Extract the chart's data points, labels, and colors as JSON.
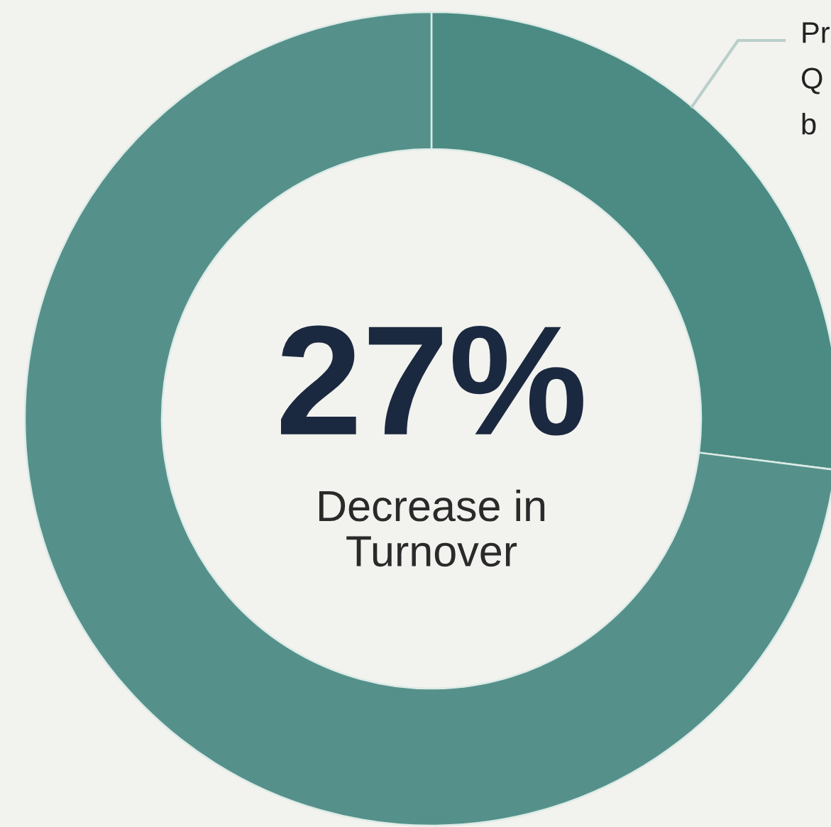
{
  "chart_data": {
    "type": "donut",
    "categories": [
      null,
      null
    ],
    "values": [
      27,
      73
    ],
    "colors": [
      "#4b8b83",
      "#55918a"
    ],
    "value_labels": [
      "27%",
      null
    ],
    "annotations": [
      "Decrease in\nTurnover",
      "Pr\nQ\nb"
    ]
  }
}
